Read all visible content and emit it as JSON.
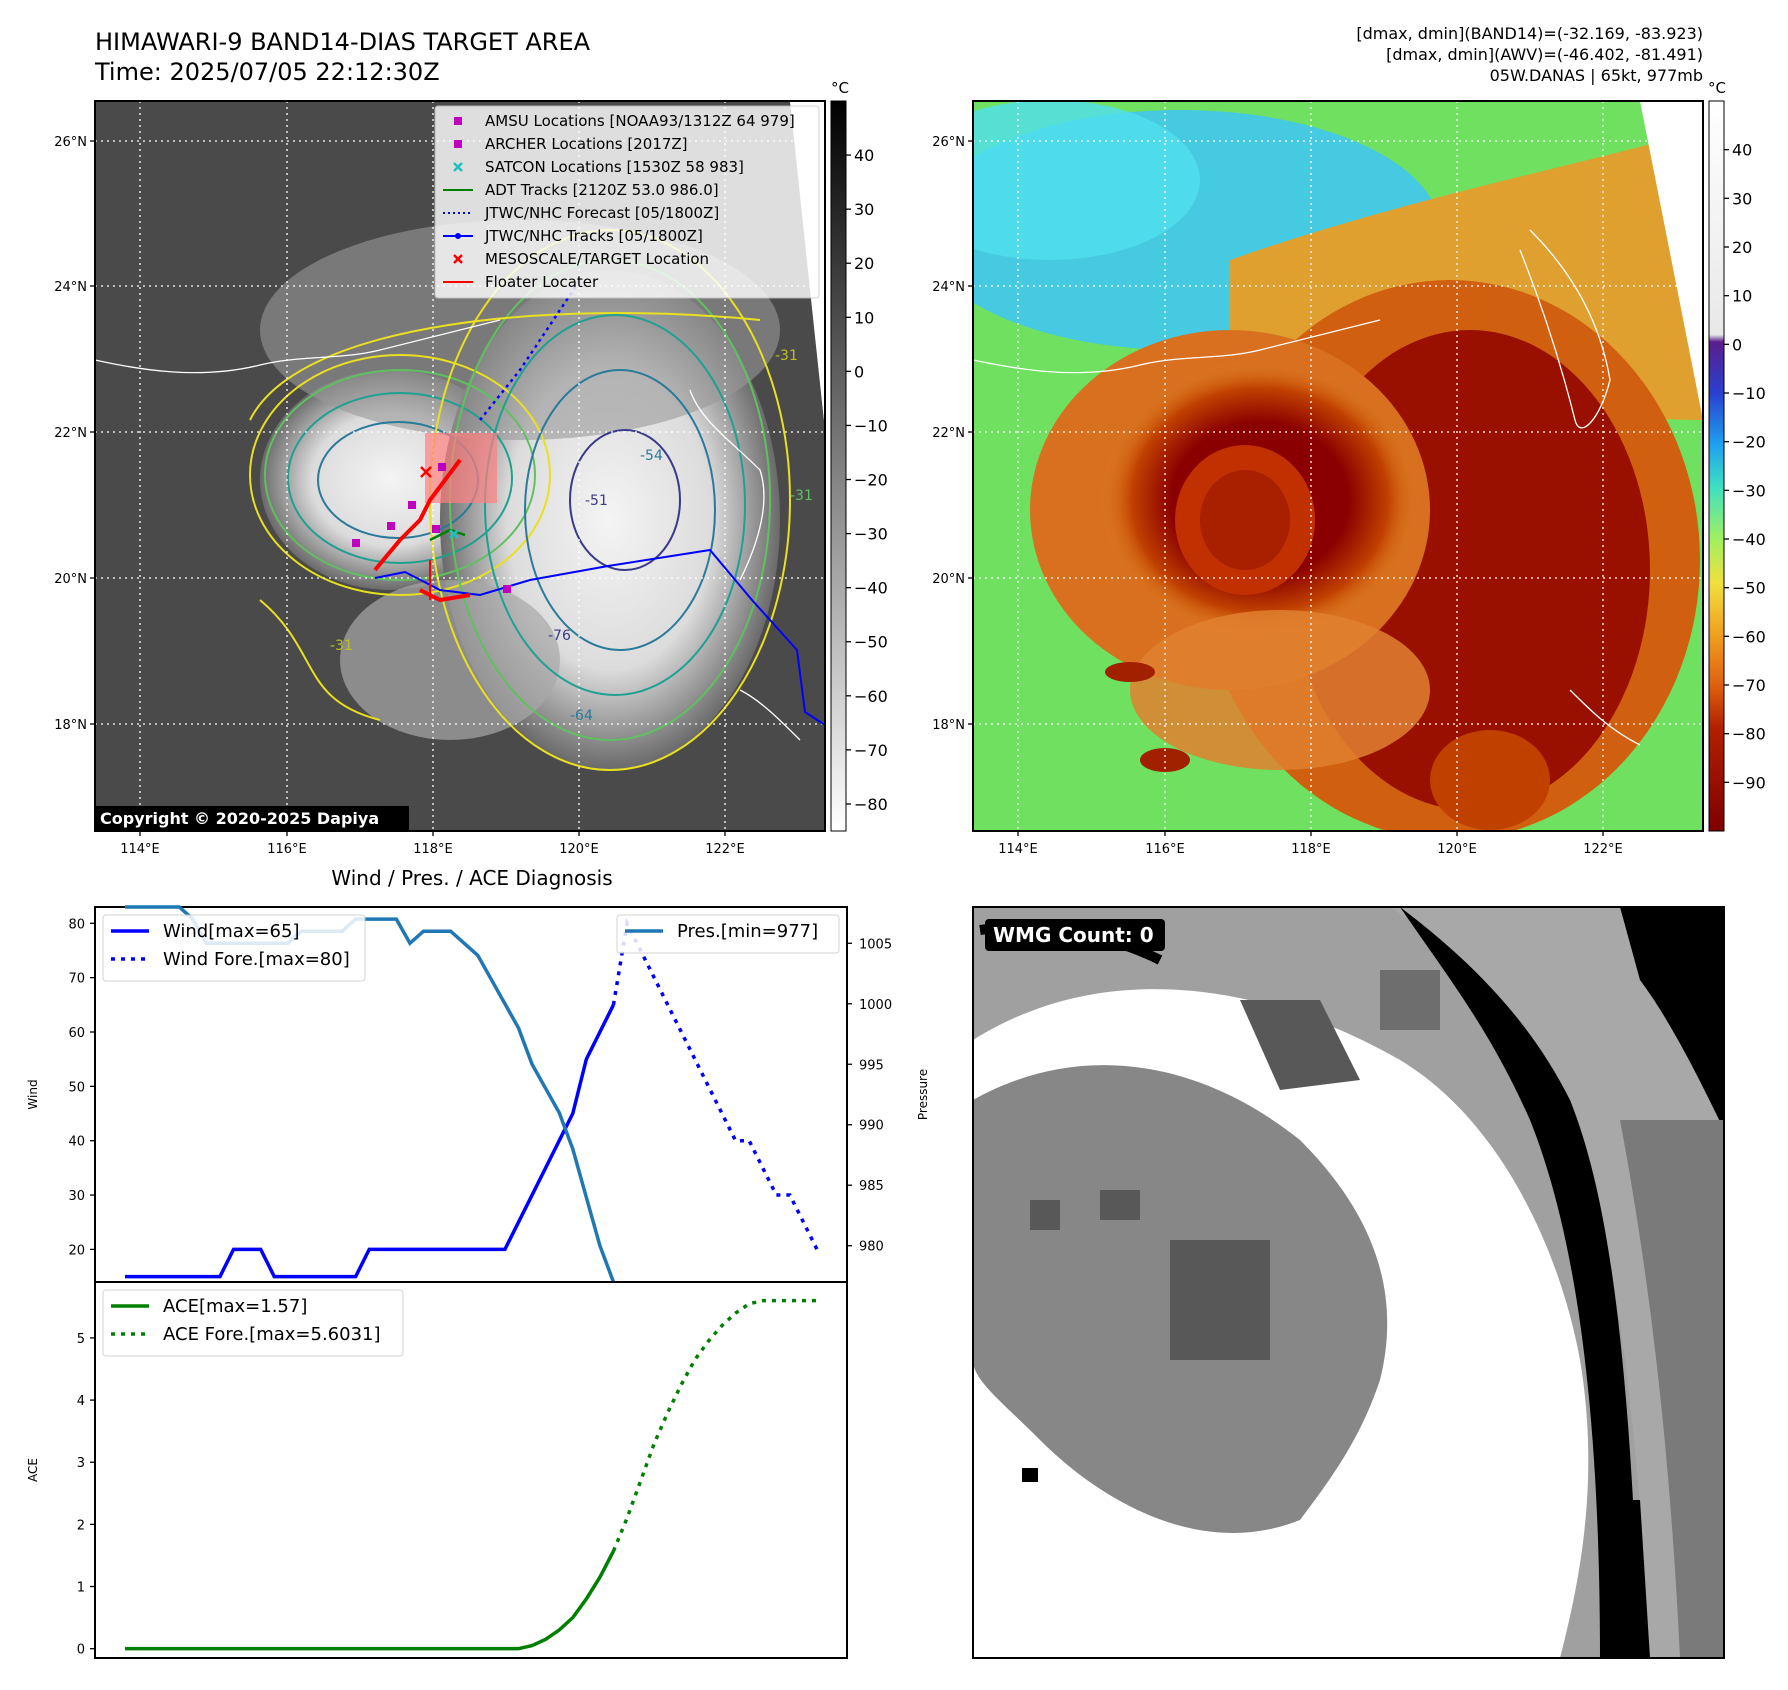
{
  "header": {
    "title": "HIMAWARI-9 BAND14-DIAS TARGET AREA",
    "time": "Time: 2025/07/05 22:12:30Z",
    "info1": "[dmax, dmin](BAND14)=(-32.169, -83.923)",
    "info2": "[dmax, dmin](AWV)=(-46.402, -81.491)",
    "info3": "05W.DANAS | 65kt, 977mb"
  },
  "map": {
    "lat_labels": [
      "26°N",
      "24°N",
      "22°N",
      "20°N",
      "18°N"
    ],
    "lon_labels": [
      "114°E",
      "116°E",
      "118°E",
      "120°E",
      "122°E"
    ],
    "copyright": "Copyright © 2020-2025 Dapiya",
    "contour_labels": [
      "-31",
      "-31",
      "-31",
      "-76",
      "-64",
      "-54",
      "-51"
    ],
    "legend": [
      {
        "label": "AMSU Locations [NOAA93/1312Z 64 979]",
        "color": "#bf00bf",
        "kind": "square"
      },
      {
        "label": "ARCHER Locations [2017Z]",
        "color": "#bf00bf",
        "kind": "square"
      },
      {
        "label": "SATCON Locations [1530Z 58 983]",
        "color": "#1fbfbf",
        "kind": "x"
      },
      {
        "label": "ADT Tracks [2120Z 53.0 986.0]",
        "color": "#008000",
        "kind": "line"
      },
      {
        "label": "JTWC/NHC Forecast [05/1800Z]",
        "color": "#0000ff",
        "kind": "dotted"
      },
      {
        "label": "JTWC/NHC Tracks [05/1800Z]",
        "color": "#0000ff",
        "kind": "dotline"
      },
      {
        "label": "MESOSCALE/TARGET Location",
        "color": "#ff0000",
        "kind": "x"
      },
      {
        "label": "Floater Locater",
        "color": "#ff0000",
        "kind": "line"
      }
    ]
  },
  "colorbar_gray": {
    "unit": "°C",
    "ticks": [
      "40",
      "30",
      "20",
      "10",
      "0",
      "−10",
      "−20",
      "−30",
      "−40",
      "−50",
      "−60",
      "−70",
      "−80"
    ]
  },
  "colorbar_color": {
    "unit": "°C",
    "ticks": [
      "40",
      "30",
      "20",
      "10",
      "0",
      "−10",
      "−20",
      "−30",
      "−40",
      "−50",
      "−60",
      "−70",
      "−80",
      "−90"
    ]
  },
  "wmg": {
    "label": "WMG Count: 0"
  },
  "chart_data": [
    {
      "type": "line",
      "title": "Wind / Pres. / ACE Diagnosis",
      "ylabel": "Wind",
      "ylim": [
        14,
        83
      ],
      "yticks": [
        "80",
        "70",
        "60",
        "50",
        "40",
        "30",
        "20"
      ],
      "series": [
        {
          "name": "Wind[max=65]",
          "style": "solid",
          "color": "#0000ff",
          "values": [
            15,
            15,
            15,
            15,
            15,
            15,
            15,
            15,
            20,
            20,
            20,
            15,
            15,
            15,
            15,
            15,
            15,
            15,
            20,
            20,
            20,
            20,
            20,
            20,
            20,
            20,
            20,
            20,
            20,
            25,
            30,
            35,
            40,
            45,
            55,
            60,
            65
          ]
        },
        {
          "name": "Wind Fore.[max=80]",
          "style": "dotted",
          "color": "#0000ff",
          "values": [
            65,
            80,
            75,
            70,
            65,
            60,
            55,
            50,
            45,
            40,
            40,
            35,
            30,
            30,
            25,
            20
          ]
        }
      ],
      "secondary": {
        "ylabel": "Pressure",
        "ylim": [
          977,
          1008
        ],
        "yticks": [
          "1005",
          "1000",
          "995",
          "990",
          "985",
          "980"
        ],
        "series": [
          {
            "name": "Pres.[min=977]",
            "style": "solid",
            "color": "#1f77b4",
            "values": [
              1008,
              1008,
              1008,
              1008,
              1008,
              1007,
              1005,
              1005,
              1005,
              1005,
              1005,
              1005,
              1005,
              1006,
              1006,
              1006,
              1006,
              1007,
              1007,
              1007,
              1007,
              1005,
              1006,
              1006,
              1006,
              1005,
              1004,
              1002,
              1000,
              998,
              995,
              993,
              991,
              988,
              984,
              980,
              977
            ]
          }
        ]
      }
    },
    {
      "type": "line",
      "ylabel": "ACE",
      "ylim": [
        -0.15,
        5.9
      ],
      "yticks": [
        "5",
        "4",
        "3",
        "2",
        "1",
        "0"
      ],
      "series": [
        {
          "name": "ACE[max=1.57]",
          "style": "solid",
          "color": "#008000",
          "values": [
            0,
            0,
            0,
            0,
            0,
            0,
            0,
            0,
            0,
            0,
            0,
            0,
            0,
            0,
            0,
            0,
            0,
            0,
            0,
            0,
            0,
            0,
            0,
            0,
            0,
            0,
            0,
            0,
            0,
            0,
            0.05,
            0.15,
            0.3,
            0.5,
            0.8,
            1.15,
            1.57
          ]
        },
        {
          "name": "ACE Fore.[max=5.6031]",
          "style": "dotted",
          "color": "#008000",
          "values": [
            1.57,
            2.1,
            2.7,
            3.3,
            3.8,
            4.25,
            4.65,
            4.95,
            5.2,
            5.4,
            5.55,
            5.6,
            5.6,
            5.6,
            5.6,
            5.6
          ]
        }
      ]
    }
  ]
}
